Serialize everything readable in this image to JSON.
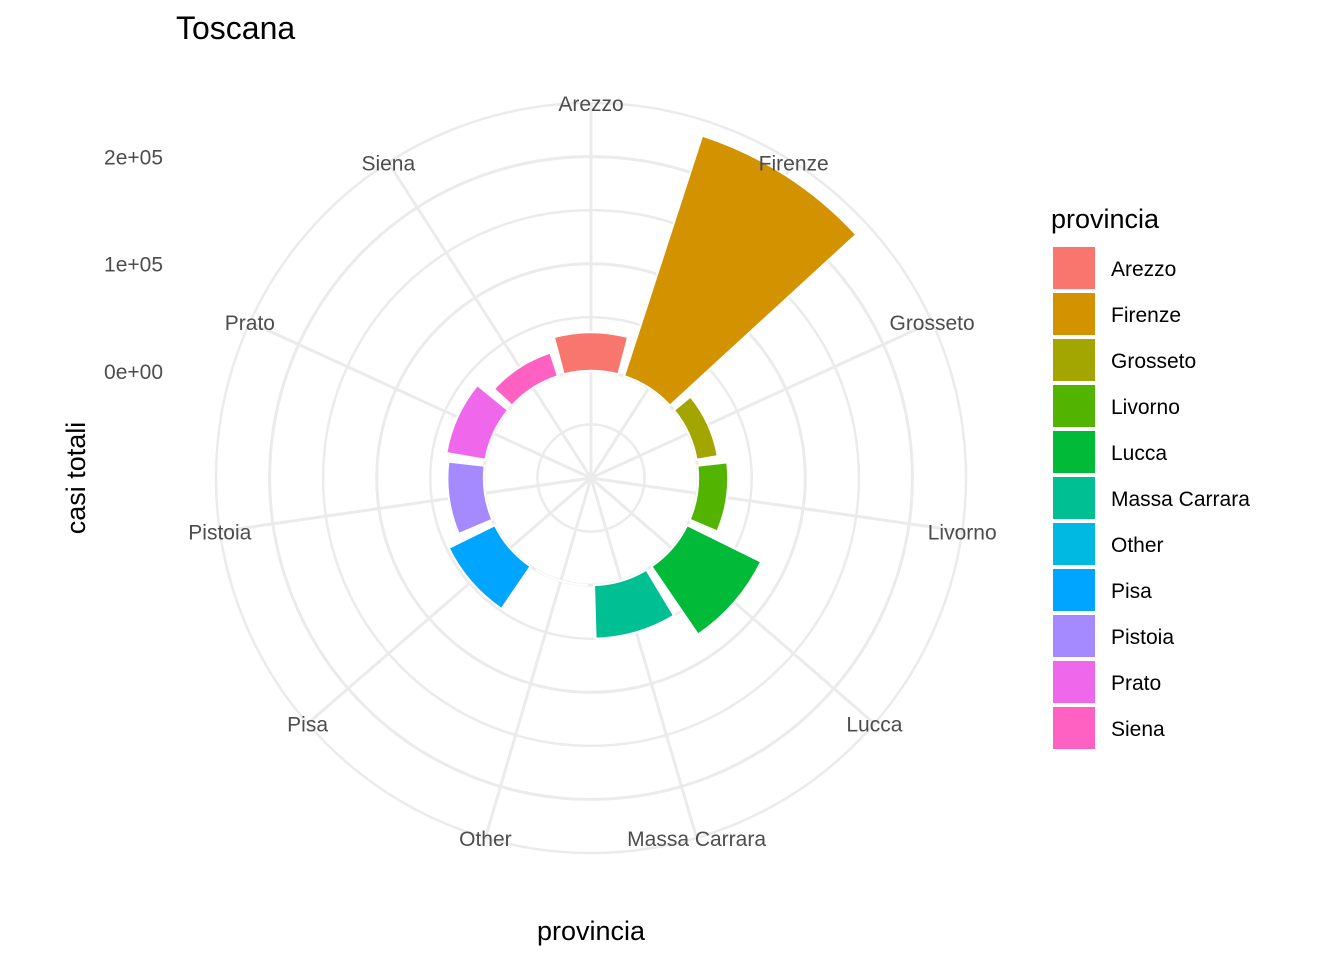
{
  "chart_data": {
    "type": "bar",
    "coord": "polar",
    "title": "Toscana",
    "xlabel": "provincia",
    "ylabel": "casi totali",
    "categories": [
      "Arezzo",
      "Firenze",
      "Grosseto",
      "Livorno",
      "Lucca",
      "Massa Carrara",
      "Other",
      "Pisa",
      "Pistoia",
      "Prato",
      "Siena"
    ],
    "values": [
      36000,
      236000,
      20000,
      28000,
      77000,
      50000,
      0,
      48000,
      34000,
      37000,
      23000
    ],
    "colors": [
      "#F8766D",
      "#D39200",
      "#A3A500",
      "#53B400",
      "#00BA38",
      "#00BF93",
      "#00B9E3",
      "#00A5FF",
      "#A58AFF",
      "#EF67EB",
      "#FF61C3"
    ],
    "y_ticks": [
      "0e+00",
      "1e+05",
      "2e+05"
    ],
    "y_tick_values": [
      0,
      100000,
      200000
    ],
    "ylim": [
      -100000,
      250000
    ],
    "grid": true,
    "legend": {
      "title": "provincia",
      "placement": "right"
    }
  }
}
